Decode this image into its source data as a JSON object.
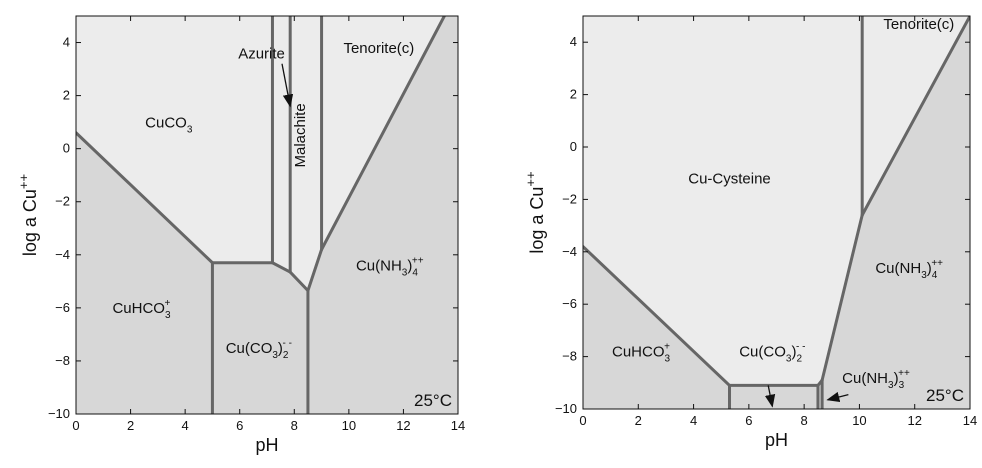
{
  "chart_data": [
    {
      "type": "phase-diagram",
      "xlabel": "pH",
      "ylabel": "log a Cu",
      "ylabel_sup": "++",
      "xlim": [
        0,
        14
      ],
      "ylim": [
        -10,
        5
      ],
      "xticks": [
        0,
        2,
        4,
        6,
        8,
        10,
        12,
        14
      ],
      "yticks": [
        -10,
        -8,
        -6,
        -4,
        -2,
        0,
        2,
        4
      ],
      "temperature_label": "25°C",
      "fill_colors": {
        "carbonate_field": "#ececec",
        "solution_field": "#d7d7d7"
      },
      "boundaries": [
        [
          [
            0,
            0.6
          ],
          [
            5.0,
            -4.3
          ]
        ],
        [
          [
            5.0,
            -4.3
          ],
          [
            5.0,
            -10
          ]
        ],
        [
          [
            5.0,
            -4.3
          ],
          [
            7.2,
            -4.3
          ]
        ],
        [
          [
            7.2,
            -4.3
          ],
          [
            7.2,
            5
          ]
        ],
        [
          [
            7.2,
            -4.3
          ],
          [
            7.85,
            -4.65
          ]
        ],
        [
          [
            7.85,
            -4.65
          ],
          [
            7.85,
            5
          ]
        ],
        [
          [
            7.85,
            -4.65
          ],
          [
            8.5,
            -5.35
          ]
        ],
        [
          [
            8.5,
            -5.35
          ],
          [
            8.5,
            -10
          ]
        ],
        [
          [
            8.5,
            -5.35
          ],
          [
            9.0,
            -3.8
          ]
        ],
        [
          [
            9.0,
            -3.8
          ],
          [
            9.0,
            5
          ]
        ],
        [
          [
            9.0,
            -3.8
          ],
          [
            13.5,
            5
          ]
        ]
      ],
      "regions": [
        {
          "label": "CuCO",
          "sub": "3",
          "sup": "",
          "x": 3.4,
          "y": 0.8,
          "field": "carbonate_field"
        },
        {
          "label": "Azurite",
          "sub": "",
          "sup": "",
          "x": 6.8,
          "y": 3.4,
          "field": "carbonate_field"
        },
        {
          "label": "Malachite",
          "sub": "",
          "sup": "",
          "x": 8.4,
          "y": 0.5,
          "rotate": -90,
          "field": "carbonate_field"
        },
        {
          "label": "Tenorite(c)",
          "sub": "",
          "sup": "",
          "x": 11.1,
          "y": 3.6,
          "field": "carbonate_field"
        },
        {
          "label": "Cu(NH",
          "label2": ")",
          "sub": "3",
          "sub2": "4",
          "sup": "++",
          "x": 11.5,
          "y": -4.6,
          "field": "solution_field"
        },
        {
          "label": "CuHCO",
          "sub": "3",
          "sup": "+",
          "x": 2.4,
          "y": -6.2,
          "field": "solution_field"
        },
        {
          "label": "Cu(CO",
          "label2": ")",
          "sub": "3",
          "sub2": "2",
          "sup": "- -",
          "x": 6.7,
          "y": -7.7,
          "field": "solution_field"
        }
      ],
      "arrows": [
        {
          "from": [
            7.55,
            3.2
          ],
          "to": [
            7.85,
            1.6
          ]
        }
      ]
    },
    {
      "type": "phase-diagram",
      "xlabel": "pH",
      "ylabel": "log a Cu",
      "ylabel_sup": "++",
      "xlim": [
        0,
        14
      ],
      "ylim": [
        -10,
        5
      ],
      "xticks": [
        0,
        2,
        4,
        6,
        8,
        10,
        12,
        14
      ],
      "yticks": [
        -10,
        -8,
        -6,
        -4,
        -2,
        0,
        2,
        4
      ],
      "temperature_label": "25°C",
      "fill_colors": {
        "complex_field": "#ececec",
        "solution_field": "#d7d7d7"
      },
      "boundaries": [
        [
          [
            0,
            -3.8
          ],
          [
            5.3,
            -9.1
          ]
        ],
        [
          [
            5.3,
            -9.1
          ],
          [
            5.3,
            -10
          ]
        ],
        [
          [
            5.3,
            -9.1
          ],
          [
            8.5,
            -9.1
          ]
        ],
        [
          [
            8.5,
            -9.1
          ],
          [
            8.5,
            -10
          ]
        ],
        [
          [
            8.5,
            -9.1
          ],
          [
            8.65,
            -8.9
          ]
        ],
        [
          [
            8.65,
            -8.9
          ],
          [
            8.65,
            -10
          ]
        ],
        [
          [
            8.65,
            -8.9
          ],
          [
            10.1,
            -2.6
          ]
        ],
        [
          [
            10.1,
            -2.6
          ],
          [
            10.1,
            5
          ]
        ],
        [
          [
            10.1,
            -2.6
          ],
          [
            14,
            5
          ]
        ]
      ],
      "regions": [
        {
          "label": "Cu-Cysteine",
          "sub": "",
          "sup": "",
          "x": 5.3,
          "y": -1.4,
          "field": "complex_field"
        },
        {
          "label": "Tenorite(c)",
          "sub": "",
          "sup": "",
          "x": 12.15,
          "y": 4.5,
          "field": "complex_field"
        },
        {
          "label": "Cu(NH",
          "label2": ")",
          "sub": "3",
          "sub2": "4",
          "sup": "++",
          "x": 11.8,
          "y": -4.8,
          "field": "solution_field"
        },
        {
          "label": "CuHCO",
          "sub": "3",
          "sup": "+",
          "x": 2.1,
          "y": -8.0,
          "field": "solution_field"
        },
        {
          "label": "Cu(CO",
          "label2": ")",
          "sub": "3",
          "sub2": "2",
          "sup": "- -",
          "x": 6.85,
          "y": -8.0,
          "field": "solution_field"
        },
        {
          "label": "Cu(NH",
          "label2": ")",
          "sub": "3",
          "sub2": "3",
          "sup": "++",
          "x": 10.6,
          "y": -9.0,
          "field": "solution_field"
        }
      ],
      "arrows": [
        {
          "from": [
            6.7,
            -9.1
          ],
          "to": [
            6.85,
            -9.9
          ]
        },
        {
          "from": [
            9.6,
            -9.45
          ],
          "to": [
            8.85,
            -9.65
          ]
        }
      ]
    }
  ]
}
